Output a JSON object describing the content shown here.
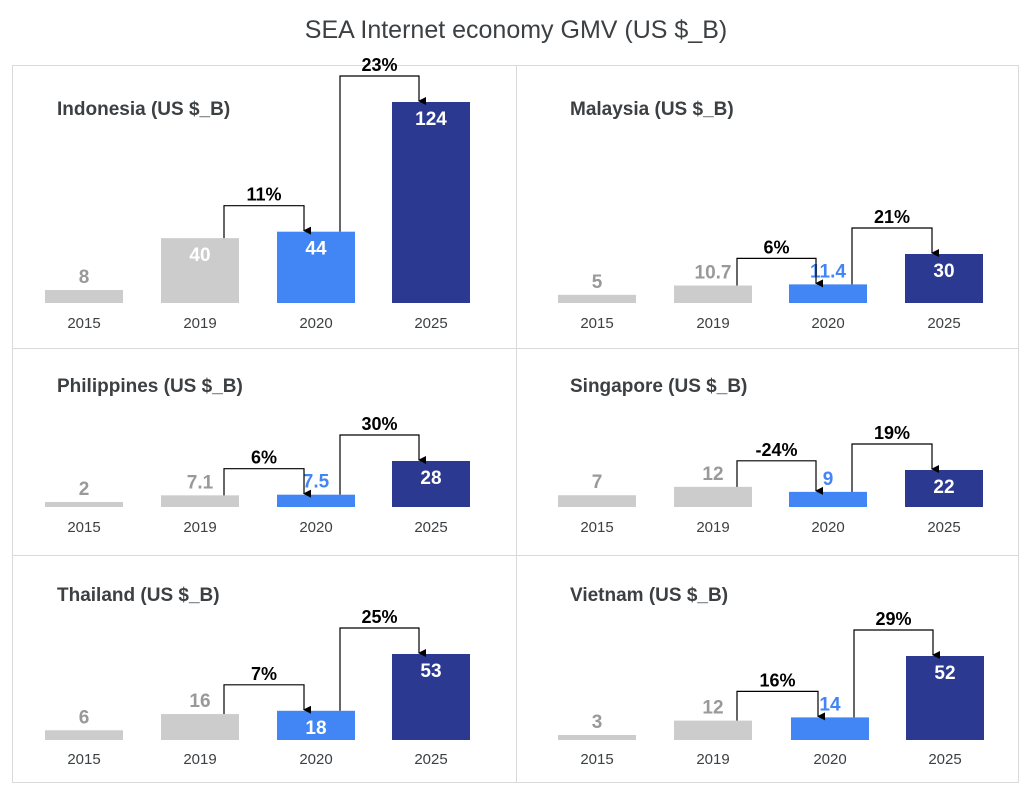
{
  "title": "SEA Internet economy GMV (US $_B)",
  "colors": {
    "past": "#cccccc",
    "past_text": "#999999",
    "current": "#4285f4",
    "forecast": "#2b3990"
  },
  "chart_data": [
    {
      "type": "bar",
      "title": "Indonesia (US $_B)",
      "categories": [
        "2015",
        "2019",
        "2020",
        "2025"
      ],
      "values": [
        8,
        40,
        44,
        124
      ],
      "value_labels": [
        "8",
        "40",
        "44",
        "124"
      ],
      "ylim": [
        0,
        124
      ],
      "growth": [
        {
          "from": 1,
          "to": 2,
          "label": "11%"
        },
        {
          "from": 2,
          "to": 3,
          "label": "23%"
        }
      ]
    },
    {
      "type": "bar",
      "title": "Malaysia (US $_B)",
      "categories": [
        "2015",
        "2019",
        "2020",
        "2025"
      ],
      "values": [
        5,
        10.7,
        11.4,
        30
      ],
      "value_labels": [
        "5",
        "10.7",
        "11.4",
        "30"
      ],
      "ylim": [
        0,
        30
      ],
      "growth": [
        {
          "from": 1,
          "to": 2,
          "label": "6%"
        },
        {
          "from": 2,
          "to": 3,
          "label": "21%"
        }
      ]
    },
    {
      "type": "bar",
      "title": "Philippines (US $_B)",
      "categories": [
        "2015",
        "2019",
        "2020",
        "2025"
      ],
      "values": [
        2,
        7.1,
        7.5,
        28
      ],
      "value_labels": [
        "2",
        "7.1",
        "7.5",
        "28"
      ],
      "ylim": [
        0,
        28
      ],
      "growth": [
        {
          "from": 1,
          "to": 2,
          "label": "6%"
        },
        {
          "from": 2,
          "to": 3,
          "label": "30%"
        }
      ]
    },
    {
      "type": "bar",
      "title": "Singapore (US $_B)",
      "categories": [
        "2015",
        "2019",
        "2020",
        "2025"
      ],
      "values": [
        7,
        12,
        9,
        22
      ],
      "value_labels": [
        "7",
        "12",
        "9",
        "22"
      ],
      "ylim": [
        0,
        22
      ],
      "growth": [
        {
          "from": 1,
          "to": 2,
          "label": "-24%"
        },
        {
          "from": 2,
          "to": 3,
          "label": "19%"
        }
      ]
    },
    {
      "type": "bar",
      "title": "Thailand (US $_B)",
      "categories": [
        "2015",
        "2019",
        "2020",
        "2025"
      ],
      "values": [
        6,
        16,
        18,
        53
      ],
      "value_labels": [
        "6",
        "16",
        "18",
        "53"
      ],
      "ylim": [
        0,
        53
      ],
      "growth": [
        {
          "from": 1,
          "to": 2,
          "label": "7%"
        },
        {
          "from": 2,
          "to": 3,
          "label": "25%"
        }
      ]
    },
    {
      "type": "bar",
      "title": "Vietnam (US $_B)",
      "categories": [
        "2015",
        "2019",
        "2020",
        "2025"
      ],
      "values": [
        3,
        12,
        14,
        52
      ],
      "value_labels": [
        "3",
        "12",
        "14",
        "52"
      ],
      "ylim": [
        0,
        52
      ],
      "growth": [
        {
          "from": 1,
          "to": 2,
          "label": "16%"
        },
        {
          "from": 2,
          "to": 3,
          "label": "29%"
        }
      ]
    }
  ]
}
